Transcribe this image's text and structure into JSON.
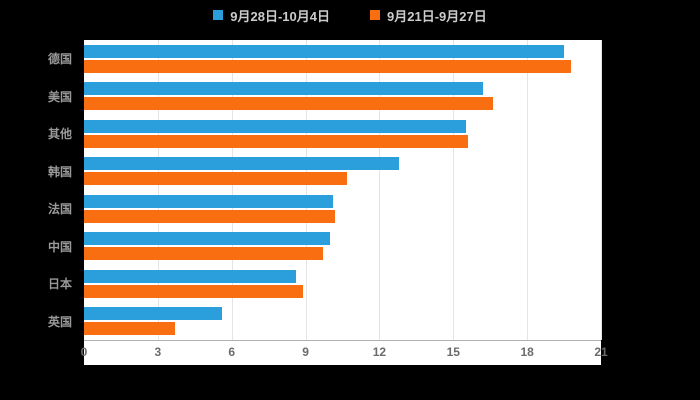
{
  "legend": {
    "items": [
      {
        "label": "9月28日-10月4日",
        "color": "#2b9fdb"
      },
      {
        "label": "9月21日-9月27日",
        "color": "#f86e11"
      }
    ]
  },
  "chart_data": {
    "type": "bar",
    "orientation": "horizontal",
    "title": "",
    "categories": [
      "德国",
      "美国",
      "其他",
      "韩国",
      "法国",
      "中国",
      "日本",
      "英国"
    ],
    "series": [
      {
        "name": "9月28日-10月4日",
        "color": "#2b9fdb",
        "values": [
          19.5,
          16.2,
          15.5,
          12.8,
          10.1,
          10.0,
          8.6,
          5.6
        ]
      },
      {
        "name": "9月21日-9月27日",
        "color": "#f86e11",
        "values": [
          19.8,
          16.6,
          15.6,
          10.7,
          10.2,
          9.7,
          8.9,
          3.7
        ]
      }
    ],
    "xlim": [
      0,
      21
    ],
    "xticks": [
      0,
      3,
      6,
      9,
      12,
      15,
      18,
      21
    ],
    "grid": true,
    "legend_position": "top",
    "plot_background": "#ffffff",
    "page_background": "#000000"
  }
}
